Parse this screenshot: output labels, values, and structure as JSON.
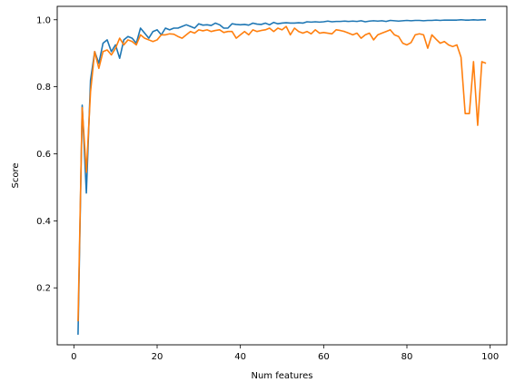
{
  "chart_data": {
    "type": "line",
    "title": "",
    "xlabel": "Num features",
    "ylabel": "Score",
    "xlim": [
      -4,
      104
    ],
    "ylim": [
      0.03,
      1.04
    ],
    "x_ticks": [
      0,
      20,
      40,
      60,
      80,
      100
    ],
    "y_ticks": [
      0.2,
      0.4,
      0.6,
      0.8,
      1.0
    ],
    "x_tick_labels": [
      "0",
      "20",
      "40",
      "60",
      "80",
      "100"
    ],
    "y_tick_labels": [
      "0.2",
      "0.4",
      "0.6",
      "0.8",
      "1.0"
    ],
    "grid": false,
    "legend": "none",
    "x": [
      1,
      2,
      3,
      4,
      5,
      6,
      7,
      8,
      9,
      10,
      11,
      12,
      13,
      14,
      15,
      16,
      17,
      18,
      19,
      20,
      21,
      22,
      23,
      24,
      25,
      26,
      27,
      28,
      29,
      30,
      31,
      32,
      33,
      34,
      35,
      36,
      37,
      38,
      39,
      40,
      41,
      42,
      43,
      44,
      45,
      46,
      47,
      48,
      49,
      50,
      51,
      52,
      53,
      54,
      55,
      56,
      57,
      58,
      59,
      60,
      61,
      62,
      63,
      64,
      65,
      66,
      67,
      68,
      69,
      70,
      71,
      72,
      73,
      74,
      75,
      76,
      77,
      78,
      79,
      80,
      81,
      82,
      83,
      84,
      85,
      86,
      87,
      88,
      89,
      90,
      91,
      92,
      93,
      94,
      95,
      96,
      97,
      98,
      99
    ],
    "series": [
      {
        "color": "#1f77b4",
        "values": [
          0.06,
          0.745,
          0.483,
          0.82,
          0.905,
          0.87,
          0.93,
          0.94,
          0.905,
          0.925,
          0.885,
          0.94,
          0.95,
          0.945,
          0.93,
          0.975,
          0.96,
          0.945,
          0.965,
          0.97,
          0.955,
          0.975,
          0.97,
          0.975,
          0.975,
          0.98,
          0.985,
          0.98,
          0.975,
          0.988,
          0.984,
          0.985,
          0.983,
          0.99,
          0.985,
          0.975,
          0.975,
          0.988,
          0.986,
          0.985,
          0.986,
          0.984,
          0.99,
          0.987,
          0.986,
          0.99,
          0.985,
          0.992,
          0.988,
          0.99,
          0.991,
          0.99,
          0.99,
          0.991,
          0.99,
          0.994,
          0.993,
          0.994,
          0.993,
          0.994,
          0.996,
          0.994,
          0.995,
          0.995,
          0.996,
          0.995,
          0.996,
          0.995,
          0.997,
          0.994,
          0.996,
          0.997,
          0.996,
          0.997,
          0.995,
          0.998,
          0.997,
          0.996,
          0.997,
          0.998,
          0.997,
          0.998,
          0.998,
          0.997,
          0.998,
          0.998,
          0.999,
          0.998,
          0.999,
          0.999,
          0.999,
          0.999,
          1.0,
          0.999,
          0.999,
          1.0,
          0.999,
          1.0,
          1.0
        ]
      },
      {
        "color": "#ff7f0e",
        "values": [
          0.1,
          0.738,
          0.545,
          0.785,
          0.905,
          0.855,
          0.905,
          0.91,
          0.895,
          0.915,
          0.945,
          0.925,
          0.94,
          0.935,
          0.925,
          0.955,
          0.945,
          0.94,
          0.935,
          0.94,
          0.955,
          0.955,
          0.958,
          0.957,
          0.95,
          0.945,
          0.955,
          0.965,
          0.96,
          0.97,
          0.967,
          0.97,
          0.965,
          0.968,
          0.97,
          0.962,
          0.965,
          0.965,
          0.945,
          0.955,
          0.965,
          0.955,
          0.97,
          0.965,
          0.968,
          0.97,
          0.975,
          0.965,
          0.975,
          0.97,
          0.98,
          0.955,
          0.975,
          0.965,
          0.96,
          0.965,
          0.958,
          0.97,
          0.96,
          0.962,
          0.96,
          0.958,
          0.97,
          0.968,
          0.965,
          0.96,
          0.955,
          0.96,
          0.945,
          0.955,
          0.96,
          0.94,
          0.955,
          0.96,
          0.965,
          0.97,
          0.955,
          0.95,
          0.93,
          0.925,
          0.932,
          0.955,
          0.958,
          0.955,
          0.915,
          0.955,
          0.942,
          0.93,
          0.935,
          0.925,
          0.92,
          0.925,
          0.888,
          0.72,
          0.72,
          0.875,
          0.685,
          0.875,
          0.87
        ]
      }
    ]
  }
}
